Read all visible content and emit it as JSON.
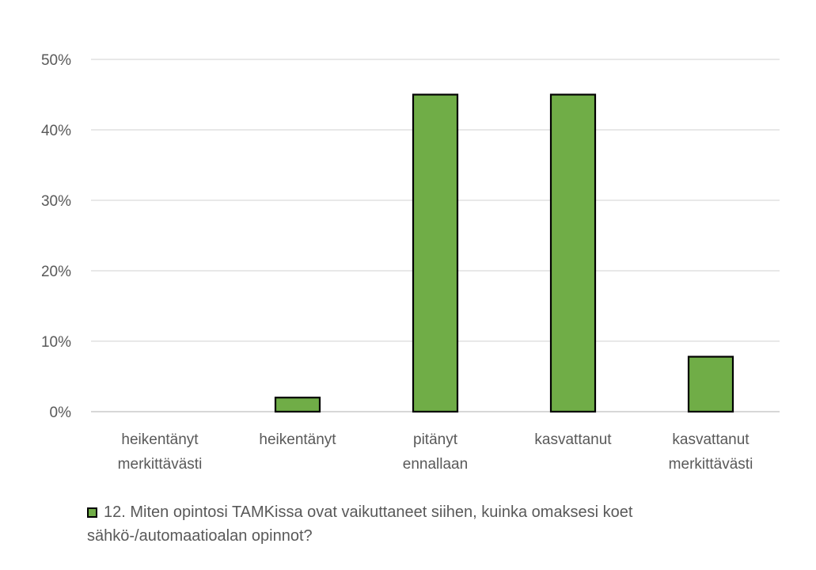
{
  "chart_data": {
    "type": "bar",
    "categories": [
      [
        "heikentänyt",
        "merkittävästi"
      ],
      [
        "heikentänyt"
      ],
      [
        "pitänyt",
        "ennallaan"
      ],
      [
        "kasvattanut"
      ],
      [
        "kasvattanut",
        "merkittävästi"
      ]
    ],
    "series": [
      {
        "name": "12. Miten opintosi TAMKissa ovat vaikuttaneet siihen, kuinka omaksesi koet sähkö-/automaatioalan opinnot?",
        "values": [
          0,
          2,
          45,
          45,
          7.8
        ],
        "color": "#70ad47"
      }
    ],
    "ylim": [
      0,
      50
    ],
    "yticks": [
      0,
      10,
      20,
      30,
      40,
      50
    ],
    "y_tick_labels": [
      "0%",
      "10%",
      "20%",
      "30%",
      "40%",
      "50%"
    ],
    "grid": true,
    "legend_position": "bottom",
    "bar_outline_color": "#000000",
    "grid_color": "#d9d9d9"
  }
}
